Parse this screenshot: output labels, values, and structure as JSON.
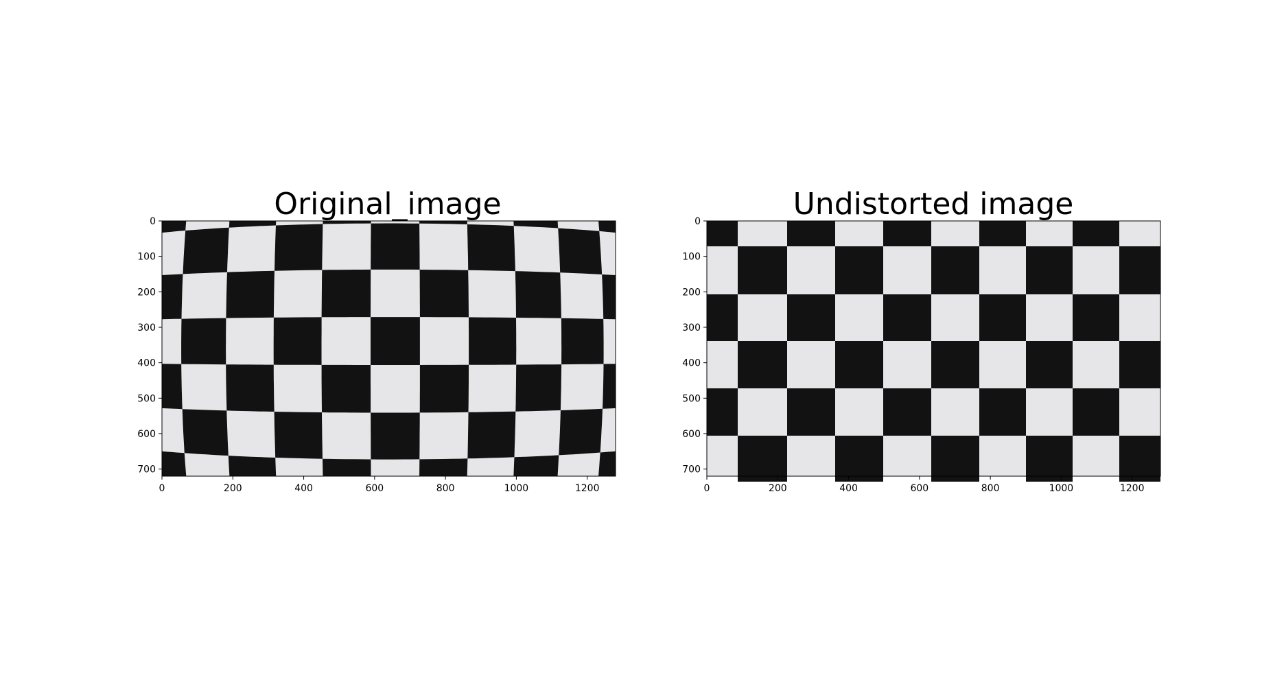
{
  "figure": {
    "panels": [
      {
        "title": "Original_image",
        "content": "Photograph of a black-and-white checkerboard calibration target showing barrel lens distortion (curved grid lines).",
        "x_axis": {
          "ticks": [
            "0",
            "200",
            "400",
            "600",
            "800",
            "1000",
            "1200"
          ],
          "range": [
            0,
            1280
          ]
        },
        "y_axis": {
          "ticks": [
            "0",
            "100",
            "200",
            "300",
            "400",
            "500",
            "600",
            "700"
          ],
          "range": [
            720,
            0
          ]
        }
      },
      {
        "title": "Undistorted image",
        "content": "The same checkerboard after lens-distortion correction; grid lines are straight.",
        "x_axis": {
          "ticks": [
            "0",
            "200",
            "400",
            "600",
            "800",
            "1000",
            "1200"
          ],
          "range": [
            0,
            1280
          ]
        },
        "y_axis": {
          "ticks": [
            "0",
            "100",
            "200",
            "300",
            "400",
            "500",
            "600",
            "700"
          ],
          "range": [
            720,
            0
          ]
        }
      }
    ]
  },
  "colors": {
    "dark_square": "#121212",
    "light_square": "#e6e6e9",
    "background": "#ffffff"
  }
}
